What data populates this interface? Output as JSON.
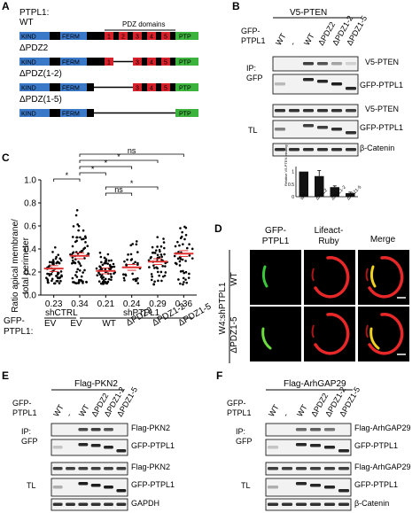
{
  "panels": {
    "A": {
      "letter": "A",
      "header": "PTPL1:",
      "pdz_title": "PDZ domains",
      "constructs": [
        {
          "name": "WT",
          "blocks": [
            "KIND",
            "FERM",
            "1",
            "2",
            "3",
            "4",
            "5",
            "PTP"
          ]
        },
        {
          "name": "ΔPDZ2",
          "blocks": [
            "KIND",
            "FERM",
            "1",
            "3",
            "4",
            "5",
            "PTP"
          ]
        },
        {
          "name": "ΔPDZ(1-2)",
          "blocks": [
            "KIND",
            "FERM",
            "3",
            "4",
            "5",
            "PTP"
          ]
        },
        {
          "name": "ΔPDZ(1-5)",
          "blocks": [
            "KIND",
            "FERM",
            "PTP"
          ]
        }
      ],
      "colors": {
        "kind": "#3a78c8",
        "ferm": "#3a78c8",
        "pdz": "#d6202a",
        "ptp": "#3cb33c",
        "black": "#000000"
      }
    },
    "B": {
      "letter": "B",
      "top_label": "V5-PTEN",
      "left_label_line1": "GFP-",
      "left_label_line2": "PTPL1",
      "lanes": [
        "WT",
        "-",
        "WT",
        "ΔPDZ2",
        "ΔPDZ1-2",
        "ΔPDZ1-5"
      ],
      "ip_label_line1": "IP:",
      "ip_label_line2": "GFP",
      "tl_label": "TL",
      "blot_labels": [
        "V5-PTEN",
        "GFP-PTPL1",
        "V5-PTEN",
        "GFP-PTPL1",
        "β-Catenin"
      ],
      "inset": {
        "ylabel": "Relative V5-PTEN binding",
        "categories": [
          "WT",
          "ΔPDZ2",
          "ΔPDZ1-2",
          "ΔPDZ1-5"
        ],
        "values": [
          1.0,
          0.82,
          0.38,
          0.14
        ],
        "errors": [
          0,
          0.22,
          0.05,
          0.04
        ],
        "ticks": [
          "1",
          "0.5",
          "0"
        ]
      }
    },
    "C": {
      "letter": "C",
      "ylabel_line1": "Ratio apical membrane/",
      "ylabel_line2": "total perimeter",
      "y_ticks": [
        "0.0",
        "0.2",
        "0.4",
        "0.6",
        "0.8",
        "1.0"
      ],
      "sig_labels": [
        "*",
        "*",
        "*",
        "*",
        "ns",
        "*",
        "ns"
      ],
      "xlabel_line1": "GFP-",
      "xlabel_line2": "PTPL1:",
      "group_shctrl": "shCTRL",
      "group_shptpl1": "shPTPL1",
      "categories": [
        "EV",
        "EV",
        "WT",
        "ΔPDZ2",
        "ΔPDZ1-2",
        "ΔPDZ1-5"
      ],
      "means_text": [
        "0.23",
        "0.34",
        "0.21",
        "0.24",
        "0.29",
        "0.36"
      ],
      "point_color": "#000000",
      "mean_color": "#e03030"
    },
    "D": {
      "letter": "D",
      "col_labels": [
        {
          "line1": "GFP-",
          "line2": "PTPL1"
        },
        {
          "line1": "Lifeact-",
          "line2": "Ruby"
        },
        {
          "line1": "Merge",
          "line2": ""
        }
      ],
      "side_label": "W4:shPTPL1",
      "row_labels": [
        "WT",
        "ΔPDZ1-5"
      ]
    },
    "E": {
      "letter": "E",
      "title": "Flag-PKN2",
      "left_label_line1": "GFP-",
      "left_label_line2": "PTPL1",
      "lanes": [
        "WT",
        "-",
        "WT",
        "ΔPDZ2",
        "ΔPDZ1-2",
        "ΔPDZ1-5"
      ],
      "ip_label_line1": "IP:",
      "ip_label_line2": "GFP",
      "tl_label": "TL",
      "blot_labels": [
        "Flag-PKN2",
        "GFP-PTPL1",
        "Flag-PKN2",
        "GFP-PTPL1",
        "GAPDH"
      ]
    },
    "F": {
      "letter": "F",
      "title": "Flag-ArhGAP29",
      "left_label_line1": "GFP-",
      "left_label_line2": "PTPL1",
      "lanes": [
        "WT",
        "-",
        "WT",
        "ΔPDZ2",
        "ΔPDZ1-2",
        "ΔPDZ1-5"
      ],
      "ip_label_line1": "IP:",
      "ip_label_line2": "GFP",
      "tl_label": "TL",
      "blot_labels": [
        "Flag-ArhGAP29",
        "GFP-PTPL1",
        "Flag-ArhGAP29",
        "GFP-PTPL1",
        "β-Catenin"
      ]
    }
  },
  "chart_data": [
    {
      "type": "bar",
      "categories": [
        "WT",
        "ΔPDZ2",
        "ΔPDZ1-2",
        "ΔPDZ1-5"
      ],
      "values": [
        1.0,
        0.82,
        0.38,
        0.14
      ],
      "errors": [
        0,
        0.22,
        0.05,
        0.04
      ],
      "title": "",
      "xlabel": "",
      "ylabel": "Relative V5-PTEN binding",
      "ylim": [
        0,
        1.2
      ]
    },
    {
      "type": "scatter",
      "categories": [
        "EV",
        "EV",
        "WT",
        "ΔPDZ2",
        "ΔPDZ1-2",
        "ΔPDZ1-5"
      ],
      "means": [
        0.23,
        0.34,
        0.21,
        0.24,
        0.29,
        0.36
      ],
      "ranges": [
        [
          0.1,
          0.48
        ],
        [
          0.1,
          0.85
        ],
        [
          0.09,
          0.46
        ],
        [
          0.1,
          0.6
        ],
        [
          0.09,
          0.62
        ],
        [
          0.09,
          0.62
        ]
      ],
      "counts": [
        55,
        70,
        65,
        30,
        50,
        45
      ],
      "ylabel": "Ratio apical membrane/ total perimeter",
      "ylim": [
        0,
        1.0
      ],
      "grid": false
    }
  ]
}
